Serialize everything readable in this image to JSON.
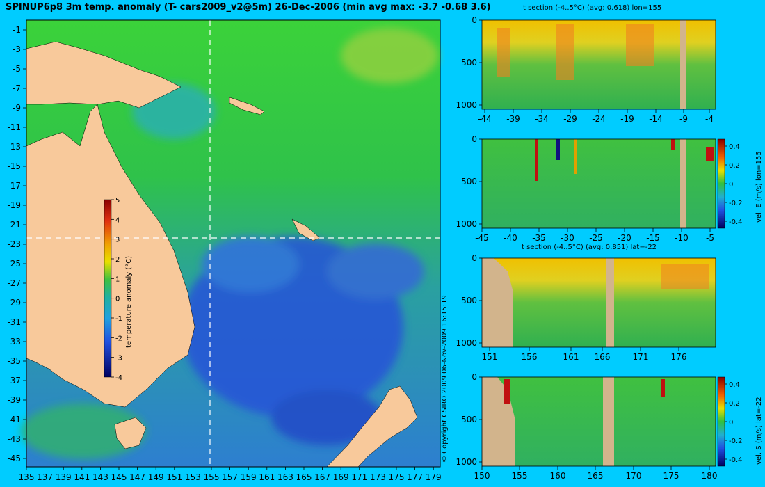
{
  "title": "SPINUP6p8 3m temp. anomaly (T- cars2009_v2@5m) 26-Dec-2006 (min avg max: -3.7 -0.68 3.6)",
  "copyright": "© Copyright CSIRO 2009  06-Nov-2009 16:15:19",
  "map": {
    "lat_labels": [
      "-1",
      "-3",
      "-5",
      "-7",
      "-9",
      "-11",
      "-13",
      "-15",
      "-17",
      "-19",
      "-21",
      "-23",
      "-25",
      "-27",
      "-29",
      "-31",
      "-33",
      "-35",
      "-37",
      "-39",
      "-41",
      "-43",
      "-45"
    ],
    "lon_labels": [
      "135",
      "137",
      "139",
      "141",
      "143",
      "145",
      "147",
      "149",
      "151",
      "153",
      "155",
      "157",
      "159",
      "161",
      "163",
      "165",
      "167",
      "169",
      "171",
      "173",
      "175",
      "177",
      "179"
    ],
    "colorbar": {
      "ticks": [
        "5",
        "4",
        "3",
        "2",
        "1",
        "0",
        "-1",
        "-2",
        "-3",
        "-4"
      ],
      "label": "temperature anomaly (°C)"
    },
    "section_line_lon": 155,
    "section_line_lat": -22,
    "colors": {
      "land": "#f8c99b",
      "ocean_green": "#2ec23a",
      "ocean_blue": "#2f5fe0"
    }
  },
  "panels": {
    "p1": {
      "title": "t section (-4..5°C) (avg: 0.618) lon=155",
      "y_ticks": [
        "0",
        "500",
        "1000"
      ],
      "x_ticks": [
        "-44",
        "-39",
        "-34",
        "-29",
        "-24",
        "-19",
        "-14",
        "-9",
        "-4"
      ]
    },
    "p2": {
      "title": "",
      "y_ticks": [
        "0",
        "500",
        "1000"
      ],
      "x_ticks": [
        "-45",
        "-40",
        "-35",
        "-30",
        "-25",
        "-20",
        "-15",
        "-10",
        "-5"
      ],
      "colorbar_ticks": [
        "0.4",
        "0.2",
        "0",
        "-0.2",
        "-0.4"
      ],
      "colorbar_label": "vel. E (m/s) lon=155"
    },
    "p3": {
      "title": "t section (-4..5°C) (avg: 0.851) lat=-22",
      "y_ticks": [
        "0",
        "500",
        "1000"
      ],
      "x_ticks": [
        "151",
        "156",
        "161",
        "166",
        "171",
        "176"
      ]
    },
    "p4": {
      "title": "",
      "y_ticks": [
        "0",
        "500",
        "1000"
      ],
      "x_ticks": [
        "150",
        "155",
        "160",
        "165",
        "170",
        "175",
        "180"
      ],
      "colorbar_ticks": [
        "0.4",
        "0.2",
        "0",
        "-0.2",
        "-0.4"
      ],
      "colorbar_label": "vel. S (m/s) lat=-22"
    }
  }
}
